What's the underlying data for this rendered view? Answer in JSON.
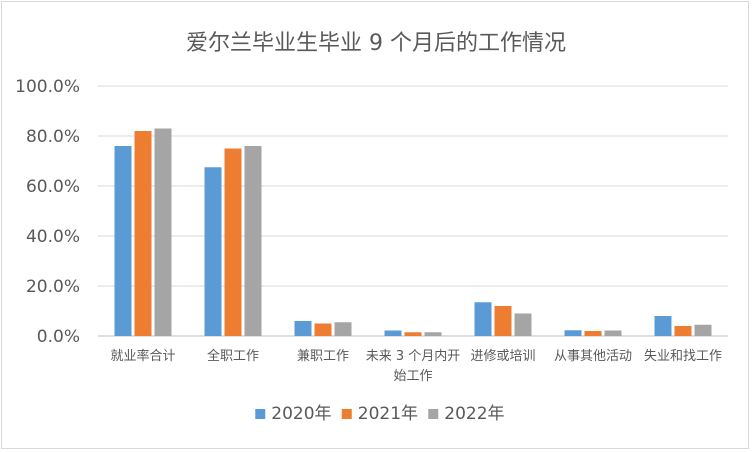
{
  "chart_data": {
    "type": "bar",
    "title": "爱尔兰毕业生毕业 9 个月后的工作情况",
    "xlabel": "",
    "ylabel": "",
    "ylim": [
      0,
      100
    ],
    "grid": true,
    "legend_position": "bottom",
    "y_tick_labels": [
      "0.0%",
      "20.0%",
      "40.0%",
      "60.0%",
      "80.0%",
      "100.0%"
    ],
    "categories": [
      [
        "就业率合计"
      ],
      [
        "全职工作"
      ],
      [
        "兼职工作"
      ],
      [
        "未来 3 个月内开",
        "始工作"
      ],
      [
        "进修或培训"
      ],
      [
        "从事其他活动"
      ],
      [
        "失业和找工作"
      ]
    ],
    "series": [
      {
        "name": "2020年",
        "color": "#5b9bd5",
        "values": [
          76,
          67.5,
          6,
          2.2,
          13.5,
          2.3,
          8
        ]
      },
      {
        "name": "2021年",
        "color": "#ed7d31",
        "values": [
          82,
          75,
          5,
          1.5,
          12,
          2,
          4
        ]
      },
      {
        "name": "2022年",
        "color": "#a5a5a5",
        "values": [
          83,
          76,
          5.5,
          1.5,
          9,
          2.2,
          4.5
        ]
      }
    ]
  }
}
